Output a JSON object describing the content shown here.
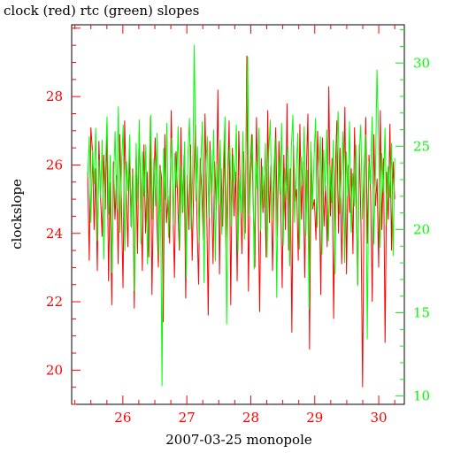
{
  "chart_data": {
    "type": "line",
    "title": "clock (red) rtc (green) slopes",
    "xlabel": "2007-03-25 monopole",
    "ylabel": "clockslope",
    "xlim": [
      25.2,
      30.4
    ],
    "ylim_left": [
      19.0,
      30.1
    ],
    "ylim_right": [
      9.5,
      32.3
    ],
    "x_ticks": [
      26,
      27,
      28,
      29,
      30
    ],
    "x_tick_labels": [
      "26",
      "27",
      "28",
      "29",
      "30"
    ],
    "y_left_ticks": [
      20,
      22,
      24,
      26,
      28
    ],
    "y_left_tick_labels": [
      "20",
      "22",
      "24",
      "26",
      "28"
    ],
    "y_right_ticks": [
      10,
      15,
      20,
      25,
      30
    ],
    "y_right_tick_labels": [
      "10",
      "15",
      "20",
      "25",
      "30"
    ],
    "grid": false,
    "colors": {
      "clock": "#ff0000",
      "rtc": "#00ff00",
      "frame": "#000000"
    },
    "series": [
      {
        "axis": "left",
        "color": "#ff0000",
        "x_start": 25.45,
        "x_end": 30.25,
        "values": [
          25.8,
          23.2,
          27.1,
          26.4,
          24.1,
          25.9,
          22.9,
          26.7,
          25.1,
          23.9,
          26.3,
          24.7,
          27.2,
          22.6,
          25.5,
          21.9,
          26.1,
          24.4,
          25.7,
          23.1,
          26.9,
          24.9,
          22.4,
          27.3,
          25.2,
          23.6,
          26.5,
          24.2,
          25.9,
          21.8,
          26.2,
          23.4,
          27.0,
          25.4,
          22.9,
          26.6,
          24.0,
          25.8,
          23.3,
          27.4,
          22.2,
          25.3,
          26.8,
          24.5,
          23.0,
          26.0,
          25.6,
          21.4,
          26.9,
          24.3,
          25.1,
          23.7,
          27.6,
          24.8,
          22.7,
          26.4,
          25.0,
          23.5,
          27.1,
          24.6,
          26.3,
          22.1,
          25.7,
          24.1,
          26.6,
          23.2,
          25.5,
          27.2,
          24.4,
          22.5,
          26.2,
          25.2,
          23.8,
          27.5,
          24.9,
          21.6,
          26.7,
          25.3,
          23.1,
          26.1,
          24.7,
          28.2,
          22.8,
          25.9,
          24.2,
          26.8,
          23.6,
          25.4,
          27.3,
          21.9,
          26.5,
          24.5,
          25.8,
          22.6,
          27.0,
          25.1,
          23.4,
          26.4,
          24.0,
          29.2,
          22.3,
          25.6,
          26.9,
          24.8,
          23.0,
          27.4,
          25.0,
          21.7,
          26.2,
          24.6,
          25.7,
          23.3,
          27.6,
          24.3,
          26.0,
          22.9,
          25.5,
          27.1,
          23.9,
          26.7,
          25.2,
          22.4,
          26.3,
          24.1,
          27.8,
          23.5,
          25.9,
          21.1,
          26.6,
          24.9,
          25.3,
          23.2,
          27.2,
          24.4,
          26.1,
          22.7,
          25.8,
          27.5,
          20.6,
          26.4,
          24.7,
          25.0,
          23.8,
          27.0,
          25.6,
          22.2,
          26.8,
          24.2,
          25.4,
          23.6,
          28.3,
          24.5,
          26.2,
          21.5,
          25.7,
          27.3,
          24.0,
          26.5,
          23.1,
          25.1,
          27.7,
          22.8,
          26.0,
          24.6,
          25.9,
          23.4,
          27.1,
          24.9,
          22.5,
          26.6,
          24.3,
          19.5,
          25.5,
          27.4,
          23.7,
          26.3,
          25.2,
          22.0,
          26.9,
          24.8,
          25.6,
          23.0,
          27.6,
          24.1,
          26.2,
          20.8,
          25.8,
          24.4,
          27.2,
          23.5,
          26.1,
          25.0
        ]
      },
      {
        "axis": "right",
        "color": "#00ff00",
        "x_start": 25.45,
        "x_end": 30.25,
        "values": [
          23.1,
          25.6,
          20.4,
          24.8,
          22.7,
          26.1,
          19.3,
          24.2,
          21.9,
          25.4,
          18.2,
          23.6,
          26.8,
          20.9,
          24.5,
          17.4,
          22.8,
          25.9,
          21.2,
          27.4,
          19.8,
          23.9,
          26.3,
          18.7,
          24.1,
          22.3,
          25.7,
          20.1,
          23.4,
          16.3,
          25.2,
          21.6,
          26.6,
          19.1,
          24.7,
          22.0,
          25.1,
          17.9,
          23.2,
          26.9,
          20.6,
          24.3,
          21.4,
          25.8,
          18.4,
          23.7,
          10.6,
          24.9,
          21.8,
          26.4,
          19.5,
          23.0,
          25.5,
          20.3,
          24.6,
          22.5,
          26.2,
          18.9,
          23.8,
          21.1,
          25.3,
          17.1,
          24.4,
          26.7,
          20.0,
          23.5,
          31.1,
          21.7,
          25.0,
          19.2,
          24.0,
          26.5,
          16.8,
          23.3,
          25.6,
          20.7,
          24.8,
          22.2,
          26.0,
          18.1,
          23.9,
          21.5,
          25.4,
          19.7,
          24.2,
          26.8,
          14.3,
          23.6,
          25.1,
          20.2,
          24.5,
          22.8,
          26.3,
          18.6,
          23.1,
          21.0,
          25.9,
          19.4,
          24.7,
          30.4,
          20.8,
          23.4,
          25.7,
          17.6,
          24.1,
          22.4,
          26.1,
          19.9,
          23.8,
          21.3,
          25.2,
          18.3,
          24.6,
          26.6,
          20.5,
          23.0,
          25.5,
          15.9,
          24.3,
          22.1,
          26.4,
          19.0,
          23.7,
          21.8,
          25.0,
          17.8,
          24.9,
          26.9,
          20.4,
          23.3,
          25.8,
          18.8,
          24.4,
          22.6,
          26.2,
          19.6,
          23.6,
          15.2,
          25.3,
          21.2,
          24.0,
          26.7,
          20.1,
          23.5,
          25.6,
          18.5,
          24.8,
          22.3,
          26.0,
          19.3,
          23.9,
          21.6,
          25.4,
          17.3,
          24.2,
          27.1,
          20.9,
          23.2,
          25.9,
          18.0,
          24.7,
          22.0,
          26.5,
          19.8,
          23.4,
          21.4,
          25.1,
          16.6,
          24.5,
          26.3,
          20.6,
          23.7,
          25.7,
          13.4,
          24.1,
          22.7,
          26.8,
          19.1,
          23.0,
          29.6,
          25.5,
          18.9,
          24.6,
          22.2,
          26.1,
          20.3,
          23.8,
          21.9,
          25.2,
          18.4,
          24.3
        ]
      }
    ]
  }
}
